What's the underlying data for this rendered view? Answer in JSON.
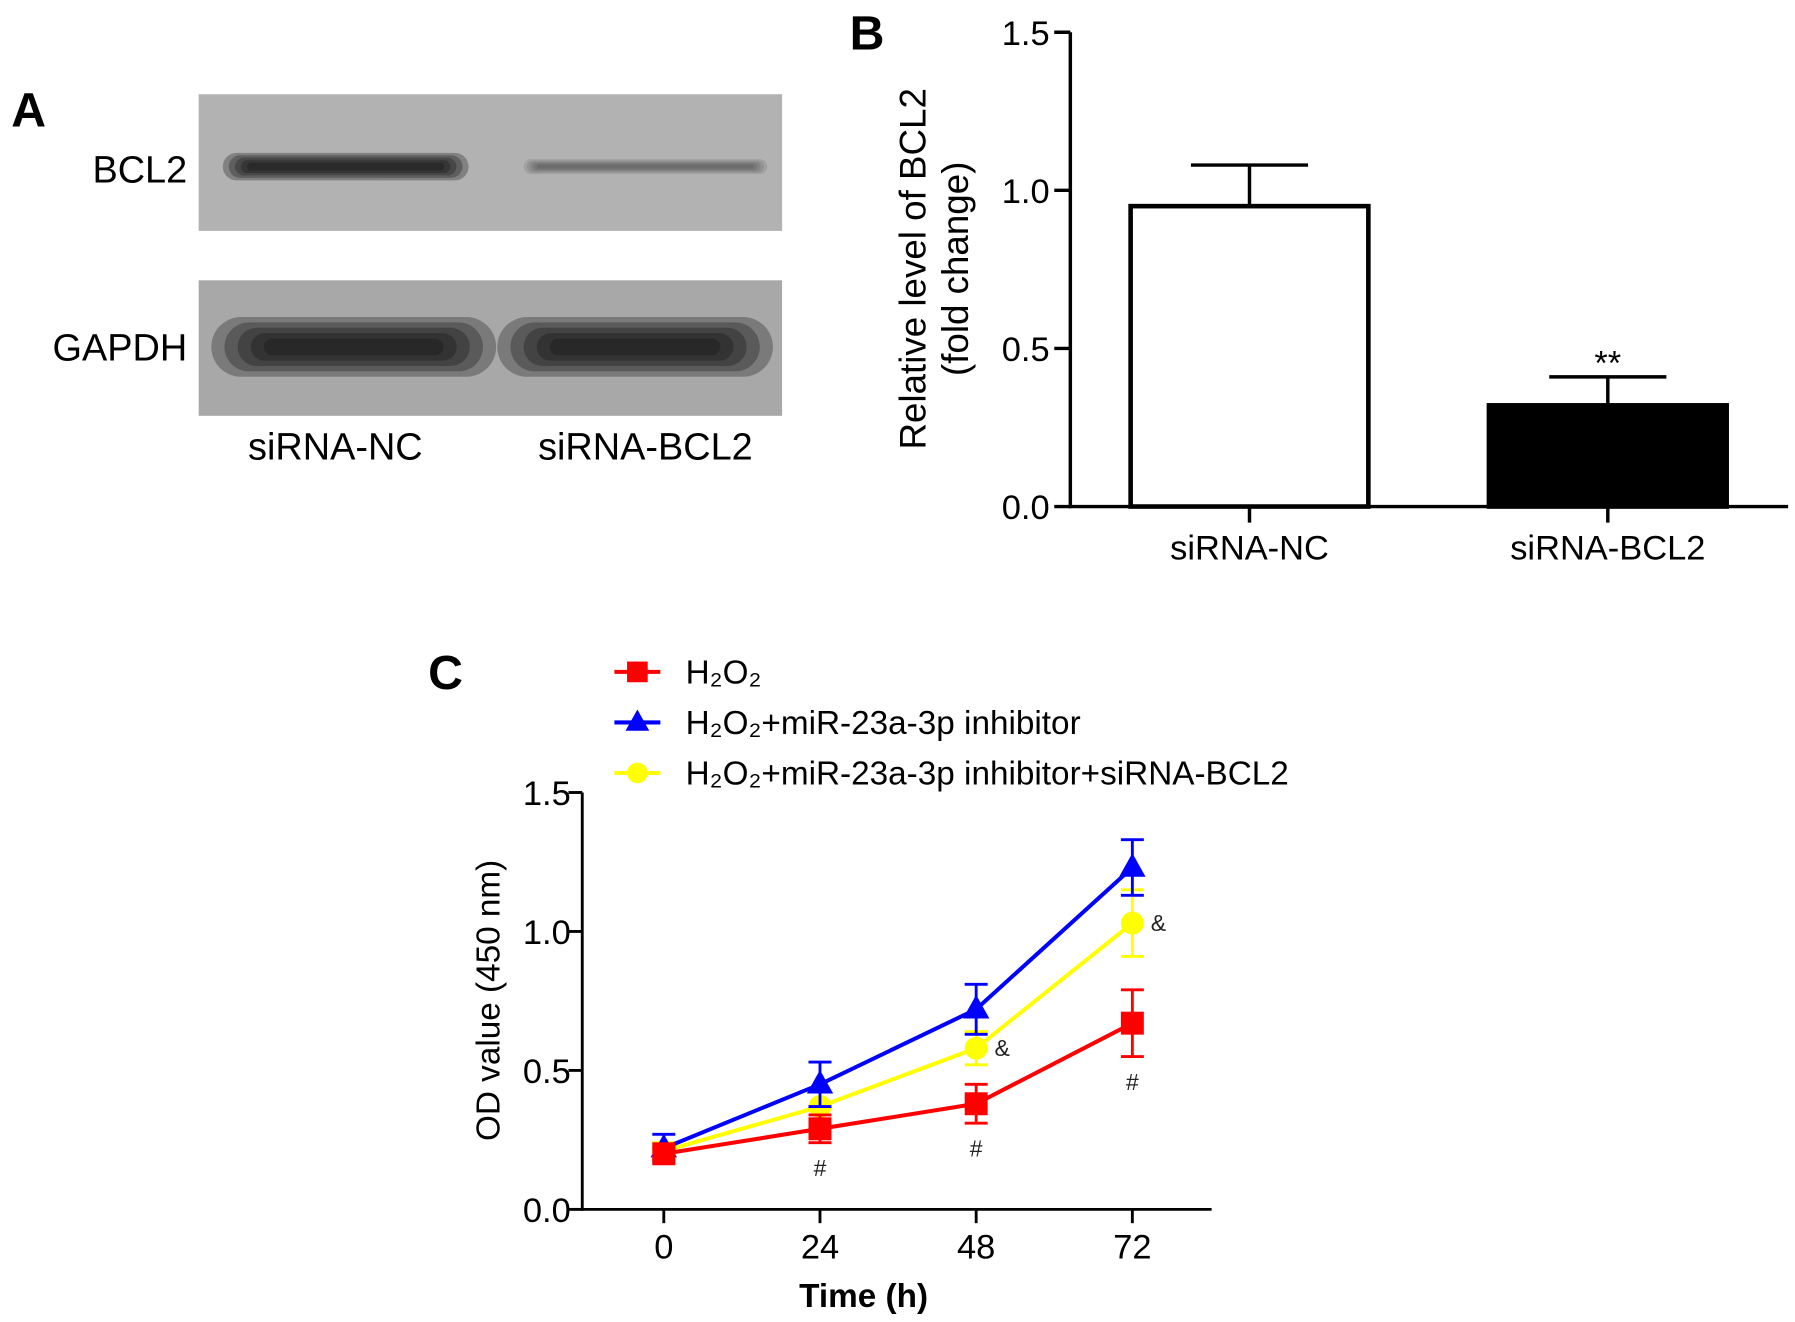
{
  "figure": {
    "panel_labels": [
      "A",
      "B",
      "C"
    ]
  },
  "blot": {
    "lanes": [
      "siRNA-NC",
      "siRNA-BCL2"
    ],
    "rows": [
      {
        "label": "BCL2",
        "background": "#b2b2b2",
        "band_intensity": [
          1.0,
          0.35
        ]
      },
      {
        "label": "GAPDH",
        "background": "#a8a8a8",
        "band_intensity": [
          1.0,
          1.0
        ]
      }
    ]
  },
  "chart_data": [
    {
      "type": "bar",
      "categories": [
        "siRNA-NC",
        "siRNA-BCL2"
      ],
      "values": [
        0.95,
        0.32
      ],
      "error": [
        0.13,
        0.09
      ],
      "annotations": [
        "",
        "**"
      ],
      "bar_colors": [
        "#ffffff",
        "#000000"
      ],
      "ylabel": [
        "Relative level of BCL2",
        "(fold change)"
      ],
      "ylim": [
        0,
        1.5
      ],
      "yticks": [
        "0.0",
        "0.5",
        "1.0",
        "1.5"
      ],
      "grid": false
    },
    {
      "type": "line",
      "x": [
        0,
        24,
        48,
        72
      ],
      "xticks": [
        "0",
        "24",
        "48",
        "72"
      ],
      "xlabel": "Time (h)",
      "ylabel": "OD value (450 nm)",
      "ylim": [
        0,
        1.5
      ],
      "yticks": [
        "0.0",
        "0.5",
        "1.0",
        "1.5"
      ],
      "grid": false,
      "legend_position": "top-left",
      "series": [
        {
          "name": "H₂O₂",
          "color": "#ff0000",
          "marker": "square",
          "values": [
            0.2,
            0.29,
            0.38,
            0.67
          ],
          "error": [
            0.02,
            0.05,
            0.07,
            0.12
          ],
          "annotations": [
            "",
            "#",
            "#",
            "#"
          ],
          "annotation_position": "below"
        },
        {
          "name": "H₂O₂+miR-23a-3p inhibitor",
          "color": "#0000ff",
          "marker": "triangle",
          "values": [
            0.22,
            0.45,
            0.72,
            1.23
          ],
          "error": [
            0.05,
            0.08,
            0.09,
            0.1
          ],
          "annotations": [
            "",
            "",
            "",
            ""
          ],
          "annotation_position": "below"
        },
        {
          "name": "H₂O₂+miR-23a-3p inhibitor+siRNA-BCL2",
          "color": "#ffff00",
          "marker": "circle",
          "values": [
            0.21,
            0.37,
            0.58,
            1.03
          ],
          "error": [
            0.03,
            0.06,
            0.06,
            0.12
          ],
          "annotations": [
            "",
            "",
            "&",
            "&"
          ],
          "annotation_position": "right"
        }
      ]
    }
  ]
}
